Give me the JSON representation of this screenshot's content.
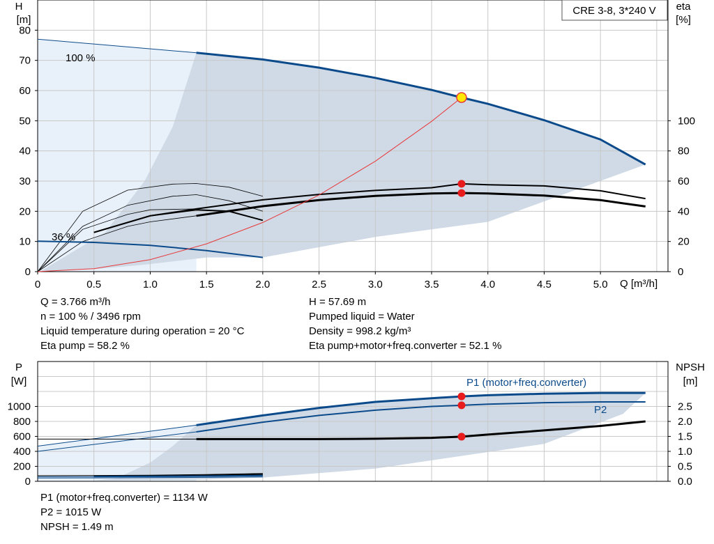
{
  "chart_data": [
    {
      "type": "line",
      "title": "CRE 3-8, 3*240 V",
      "xlabel": "Q [m³/h]",
      "ylabel": "H",
      "ylabel_unit": "[m]",
      "y2label": "eta",
      "y2label_unit": "[%]",
      "xlim": [
        0,
        5.6
      ],
      "ylim": [
        0,
        90
      ],
      "y2lim": [
        0,
        180
      ],
      "x_ticks": [
        "0",
        "0.5",
        "1.0",
        "1.5",
        "2.0",
        "2.5",
        "3.0",
        "3.5",
        "4.0",
        "4.5",
        "5.0"
      ],
      "y_ticks": [
        "0",
        "10",
        "20",
        "30",
        "40",
        "50",
        "60",
        "70",
        "80"
      ],
      "y2_ticks": [
        "0",
        "20",
        "40",
        "60",
        "80",
        "100"
      ],
      "grid": true,
      "series": [
        {
          "name": "100 %",
          "color": "#0b4a8a",
          "x": [
            0,
            1.41,
            2.0,
            2.5,
            3.0,
            3.5,
            3.766,
            4.0,
            4.5,
            5.0,
            5.4
          ],
          "y": [
            77,
            72.5,
            70.3,
            67.6,
            64.2,
            60.2,
            57.69,
            55.6,
            50.2,
            43.8,
            35.5
          ]
        },
        {
          "name": "36 %",
          "color": "#0b4a8a",
          "x": [
            0,
            0.5,
            1.0,
            1.5,
            2.0
          ],
          "y": [
            10.1,
            9.7,
            8.7,
            7.0,
            4.7
          ]
        },
        {
          "name": "eta",
          "axis": "y2",
          "color": "#000000",
          "x": [
            0.5,
            1.0,
            1.41,
            2.0,
            2.5,
            3.0,
            3.5,
            3.766,
            4.0,
            4.5,
            5.0,
            5.4
          ],
          "y": [
            26,
            37,
            41.6,
            47.6,
            51.2,
            53.8,
            55.6,
            58.2,
            57.6,
            56.8,
            53.6,
            48.4
          ]
        },
        {
          "name": "eta total",
          "axis": "y2",
          "color": "#000000",
          "x": [
            1.41,
            2.0,
            2.5,
            3.0,
            3.5,
            3.766,
            4.0,
            4.5,
            5.0,
            5.4
          ],
          "y": [
            37,
            43.4,
            47.4,
            50.2,
            51.8,
            52.1,
            51.8,
            50.4,
            47.4,
            43.2
          ]
        },
        {
          "name": "system curve",
          "color": "#e8393a",
          "x": [
            0,
            0.5,
            1.0,
            1.5,
            2.0,
            2.5,
            3.0,
            3.5,
            3.766
          ],
          "y": [
            0,
            1.0,
            4.0,
            9.2,
            16.3,
            25.4,
            36.6,
            49.8,
            57.69
          ]
        }
      ],
      "operating_point": {
        "x": 3.766,
        "y": 57.69
      }
    },
    {
      "type": "line",
      "xlabel": "",
      "ylabel": "P",
      "ylabel_unit": "[W]",
      "y2label": "NPSH",
      "y2label_unit": "[m]",
      "xlim": [
        0,
        5.6
      ],
      "ylim": [
        0,
        1600
      ],
      "y2lim": [
        0,
        4.0
      ],
      "y_ticks": [
        "0",
        "200",
        "400",
        "600",
        "800",
        "1000"
      ],
      "y2_ticks": [
        "0.0",
        "0.5",
        "1.0",
        "1.5",
        "2.0",
        "2.5"
      ],
      "grid": true,
      "series": [
        {
          "name": "P1 (motor+freq.converter)",
          "color": "#0b4a8a",
          "x": [
            1.41,
            2.0,
            2.5,
            3.0,
            3.5,
            3.766,
            4.0,
            4.5,
            5.0,
            5.4
          ],
          "y": [
            750,
            880,
            980,
            1060,
            1110,
            1134,
            1150,
            1170,
            1180,
            1180
          ]
        },
        {
          "name": "P2",
          "color": "#0b4a8a",
          "x": [
            1.41,
            2.0,
            2.5,
            3.0,
            3.5,
            3.766,
            4.0,
            4.5,
            5.0,
            5.4
          ],
          "y": [
            660,
            790,
            880,
            950,
            1000,
            1015,
            1030,
            1050,
            1060,
            1060
          ]
        },
        {
          "name": "NPSH",
          "axis": "y2",
          "color": "#000000",
          "x": [
            1.41,
            2.0,
            2.5,
            3.0,
            3.5,
            3.766,
            4.0,
            4.5,
            5.0,
            5.4
          ],
          "y": [
            1.41,
            1.41,
            1.41,
            1.42,
            1.45,
            1.49,
            1.56,
            1.7,
            1.85,
            2.0
          ]
        }
      ]
    }
  ],
  "labels": {
    "curve_100": "100 %",
    "curve_36": "36 %",
    "p1_label": "P1 (motor+freq.converter)",
    "p2_label": "P2"
  },
  "info_top": {
    "q": "Q = 3.766 m³/h",
    "n": "n = 100 % / 3496 rpm",
    "temp": "Liquid temperature during operation = 20 °C",
    "eta_pump": "Eta pump = 58.2 %",
    "h": "H = 57.69 m",
    "liquid": "Pumped liquid = Water",
    "density": "Density = 998.2 kg/m³",
    "eta_total": "Eta pump+motor+freq.converter = 52.1 %"
  },
  "info_bottom": {
    "p1": "P1 (motor+freq.converter) = 1134 W",
    "p2": "P2 = 1015 W",
    "npsh": "NPSH = 1.49 m"
  },
  "colors": {
    "blue": "#0b4a8a",
    "fill": "#cfdae6",
    "fill_light": "#e8f1fa",
    "red": "#e8393a",
    "marker": "#e81c1c",
    "grid": "#c8c8c8"
  }
}
